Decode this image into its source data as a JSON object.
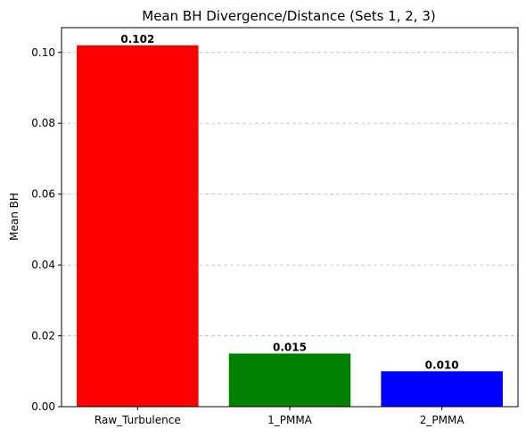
{
  "chart_data": {
    "type": "bar",
    "title": "Mean BH Divergence/Distance (Sets 1, 2, 3)",
    "xlabel": "",
    "ylabel": "Mean BH",
    "categories": [
      "Raw_Turbulence",
      "1_PMMA",
      "2_PMMA"
    ],
    "values": [
      0.102,
      0.015,
      0.01
    ],
    "value_labels": [
      "0.102",
      "0.015",
      "0.010"
    ],
    "colors": [
      "#ff0000",
      "#008000",
      "#0000ff"
    ],
    "ylim": [
      0,
      0.107
    ],
    "yticks": [
      0.0,
      0.02,
      0.04,
      0.06,
      0.08,
      0.1
    ],
    "ytick_labels": [
      "0.00",
      "0.02",
      "0.04",
      "0.06",
      "0.08",
      "0.10"
    ],
    "grid": "y-dashed",
    "legend": "none"
  }
}
